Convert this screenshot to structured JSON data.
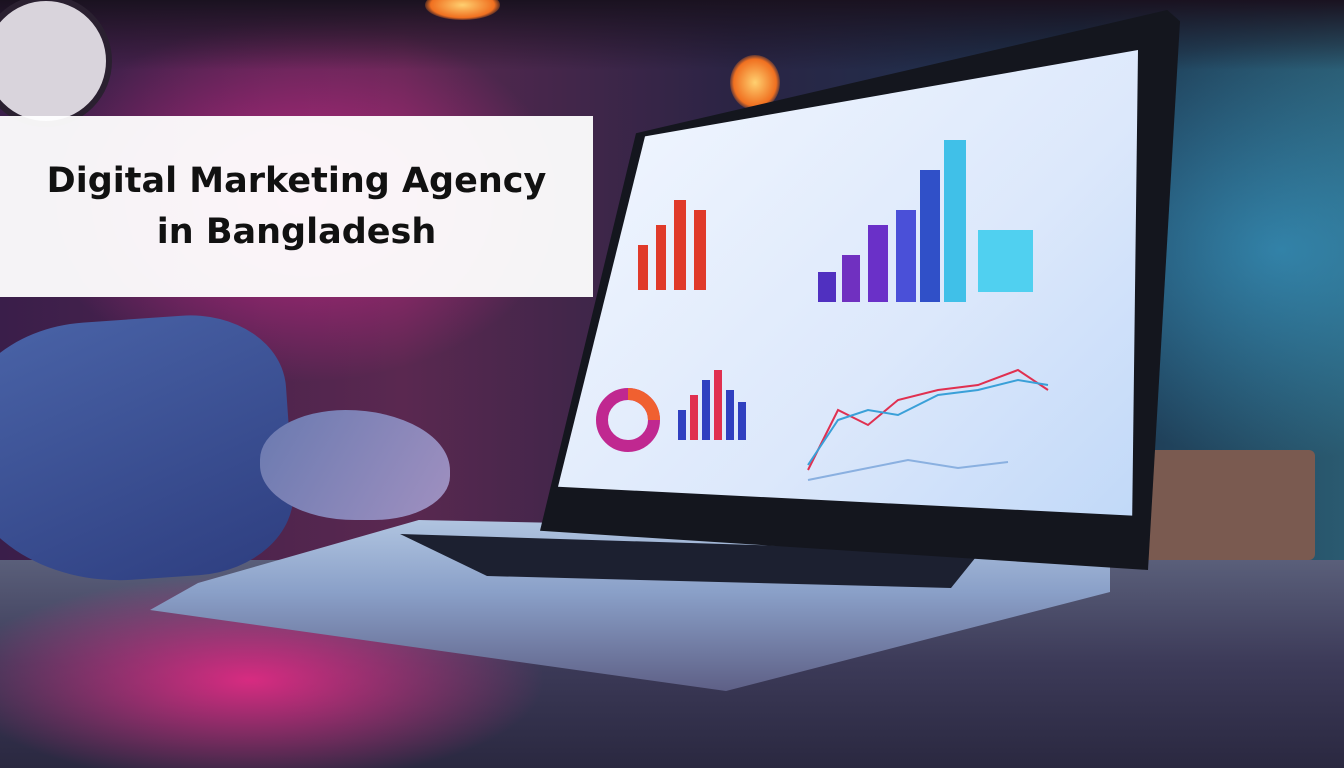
{
  "overlay": {
    "title": "Digital Marketing Agency in Bangladesh"
  },
  "colors": {
    "overlay_bg": "#ffffff",
    "title_text": "#111111",
    "accent_pink": "#e8288f",
    "accent_blue": "#3aa0d8"
  }
}
